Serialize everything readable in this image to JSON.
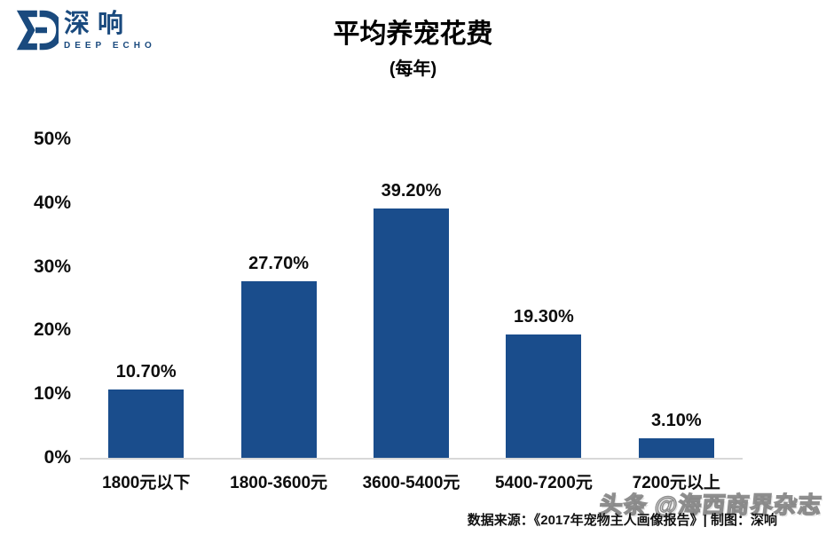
{
  "logo": {
    "brand_cn": "深响",
    "brand_en": "DEEP ECHO",
    "color": "#1a4a7e"
  },
  "header": {
    "title": "平均养宠花费",
    "subtitle": "(每年)"
  },
  "chart_data": {
    "type": "bar",
    "title": "平均养宠花费",
    "subtitle": "(每年)",
    "categories": [
      "1800元以下",
      "1800-3600元",
      "3600-5400元",
      "5400-7200元",
      "7200元以上"
    ],
    "values": [
      10.7,
      27.7,
      39.2,
      19.3,
      3.1
    ],
    "value_labels": [
      "10.70%",
      "27.70%",
      "39.20%",
      "19.30%",
      "3.10%"
    ],
    "xlabel": "",
    "ylabel": "",
    "ylim": [
      0,
      50
    ],
    "ytick_step": 10,
    "ytick_labels": [
      "0%",
      "10%",
      "20%",
      "30%",
      "40%",
      "50%"
    ],
    "grid": false,
    "legend": "none",
    "bar_color": "#1a4d8c",
    "axis_line_color": "#d8d8d8"
  },
  "footer": {
    "source": "数据来源：《2017年宠物主人画像报告》| 制图：深响",
    "watermark": "头条 @海西商界杂志"
  }
}
